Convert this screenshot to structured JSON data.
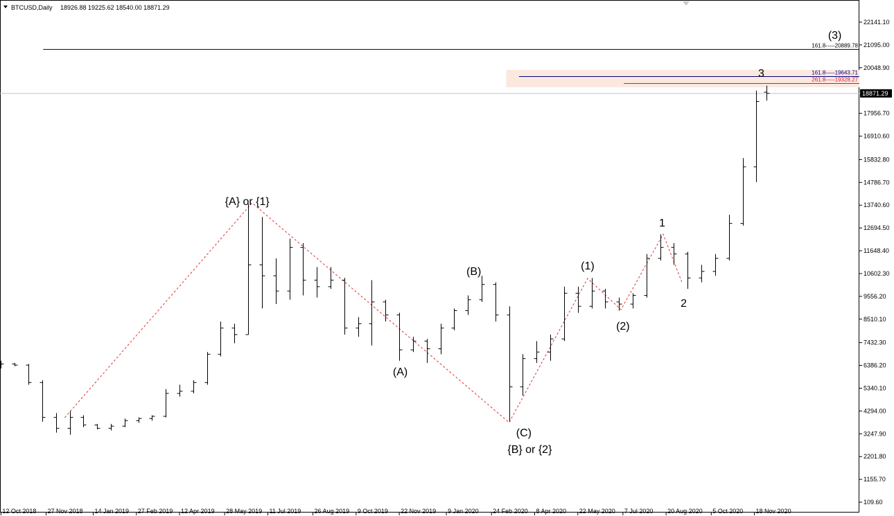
{
  "chart_data": {
    "type": "ohlc",
    "header": {
      "symbol": "BTCUSD,Daily",
      "quote": "18926.88 19225.62 18540.00 18871.29"
    },
    "color": "#000000",
    "x": [
      "2018-10-12",
      "2018-10-26",
      "2018-11-09",
      "2018-11-23",
      "2018-12-07",
      "2018-12-21",
      "2019-01-04",
      "2019-01-18",
      "2019-02-01",
      "2019-02-15",
      "2019-03-01",
      "2019-03-15",
      "2019-03-29",
      "2019-04-12",
      "2019-04-26",
      "2019-05-10",
      "2019-05-24",
      "2019-06-07",
      "2019-06-21",
      "2019-07-05",
      "2019-07-19",
      "2019-08-02",
      "2019-08-16",
      "2019-08-30",
      "2019-09-13",
      "2019-09-27",
      "2019-10-11",
      "2019-10-25",
      "2019-11-08",
      "2019-11-22",
      "2019-12-06",
      "2019-12-20",
      "2020-01-03",
      "2020-01-17",
      "2020-01-31",
      "2020-02-14",
      "2020-02-28",
      "2020-03-13",
      "2020-03-27",
      "2020-04-10",
      "2020-04-24",
      "2020-05-08",
      "2020-05-22",
      "2020-06-05",
      "2020-06-19",
      "2020-07-03",
      "2020-07-17",
      "2020-07-31",
      "2020-08-14",
      "2020-08-28",
      "2020-09-11",
      "2020-09-25",
      "2020-10-09",
      "2020-10-23",
      "2020-11-06",
      "2020-11-20",
      "2020-11-30"
    ],
    "open": [
      6500,
      6450,
      6400,
      5600,
      4000,
      3500,
      4000,
      3650,
      3500,
      3600,
      3850,
      3950,
      4050,
      5100,
      5200,
      5600,
      6900,
      8100,
      7800,
      11000,
      10500,
      9800,
      11800,
      10300,
      10000,
      10300,
      8100,
      8300,
      9300,
      8700,
      7100,
      7500,
      7150,
      8100,
      8900,
      9400,
      10100,
      8700,
      5400,
      6700,
      7000,
      7600,
      9700,
      9100,
      9800,
      9300,
      9200,
      9600,
      11300,
      11800,
      11500,
      10400,
      10700,
      11300,
      12900,
      15500,
      18926.88
    ],
    "high": [
      6600,
      6500,
      6450,
      5700,
      4200,
      4300,
      4100,
      3700,
      3700,
      3950,
      4000,
      4100,
      5300,
      5500,
      5700,
      7000,
      8400,
      8300,
      13800,
      13200,
      11300,
      12200,
      12000,
      10900,
      10900,
      10400,
      8600,
      10300,
      9400,
      8800,
      7700,
      7600,
      8300,
      9000,
      9600,
      10500,
      10200,
      9100,
      6900,
      7500,
      7800,
      10000,
      10000,
      10400,
      9900,
      9500,
      9700,
      11500,
      12400,
      12000,
      11600,
      11000,
      11500,
      13300,
      15900,
      19000,
      19225.62
    ],
    "low": [
      6250,
      6350,
      5500,
      3800,
      3300,
      3200,
      3550,
      3450,
      3400,
      3550,
      3750,
      3850,
      4000,
      4950,
      5100,
      5500,
      6800,
      7400,
      7800,
      9000,
      9200,
      9400,
      9600,
      9500,
      9900,
      7800,
      7700,
      7300,
      8400,
      6600,
      7000,
      6500,
      6900,
      8000,
      8700,
      9300,
      8400,
      3800,
      5000,
      6500,
      6600,
      7500,
      8800,
      9000,
      9000,
      8900,
      9000,
      9500,
      11200,
      11000,
      9900,
      10200,
      10500,
      11200,
      12800,
      14800,
      18540
    ],
    "close": [
      6450,
      6400,
      5600,
      4000,
      3500,
      4000,
      3650,
      3500,
      3600,
      3850,
      3950,
      4050,
      5100,
      5200,
      5600,
      6900,
      8100,
      7800,
      11000,
      10500,
      9800,
      11800,
      10300,
      10000,
      10300,
      8100,
      8300,
      9300,
      8700,
      7100,
      7500,
      7150,
      8100,
      8900,
      9400,
      10100,
      8700,
      5400,
      6700,
      7000,
      7600,
      9700,
      9100,
      9800,
      9300,
      9200,
      9600,
      11300,
      11800,
      11500,
      10400,
      10700,
      11300,
      12900,
      15500,
      18500,
      18871.29
    ],
    "xlim": [
      "2018-10-11",
      "2021-03-05"
    ],
    "xticks": [
      {
        "value": "2018-10-12",
        "label": "12 Oct 2018"
      },
      {
        "value": "2018-11-27",
        "label": "27 Nov 2018"
      },
      {
        "value": "2019-01-14",
        "label": "14 Jan 2019"
      },
      {
        "value": "2019-02-27",
        "label": "27 Feb 2019"
      },
      {
        "value": "2019-04-12",
        "label": "12 Apr 2019"
      },
      {
        "value": "2019-05-28",
        "label": "28 May 2019"
      },
      {
        "value": "2019-07-11",
        "label": "11 Jul 2019"
      },
      {
        "value": "2019-08-26",
        "label": "26 Aug 2019"
      },
      {
        "value": "2019-10-09",
        "label": "9 Oct 2019"
      },
      {
        "value": "2019-11-22",
        "label": "22 Nov 2019"
      },
      {
        "value": "2020-01-09",
        "label": "9 Jan 2020"
      },
      {
        "value": "2020-02-24",
        "label": "24 Feb 2020"
      },
      {
        "value": "2020-04-08",
        "label": "8 Apr 2020"
      },
      {
        "value": "2020-05-22",
        "label": "22 May 2020"
      },
      {
        "value": "2020-07-07",
        "label": "7 Jul 2020"
      },
      {
        "value": "2020-08-20",
        "label": "20 Aug 2020"
      },
      {
        "value": "2020-10-05",
        "label": "5 Oct 2020"
      },
      {
        "value": "2020-11-18",
        "label": "18 Nov 2020"
      }
    ],
    "ylim": [
      -367,
      23157
    ],
    "yticks": [
      {
        "value": 109.6,
        "label": "109.60"
      },
      {
        "value": 1155.7,
        "label": "1155.70"
      },
      {
        "value": 2201.8,
        "label": "2201.80"
      },
      {
        "value": 3247.9,
        "label": "3247.90"
      },
      {
        "value": 4294,
        "label": "4294.00"
      },
      {
        "value": 5340.1,
        "label": "5340.10"
      },
      {
        "value": 6386.2,
        "label": "6386.20"
      },
      {
        "value": 7432.3,
        "label": "7432.30"
      },
      {
        "value": 8510.1,
        "label": "8510.10"
      },
      {
        "value": 9556.2,
        "label": "9556.20"
      },
      {
        "value": 10602.3,
        "label": "10602.30"
      },
      {
        "value": 11648.4,
        "label": "11648.40"
      },
      {
        "value": 12694.5,
        "label": "12694.50"
      },
      {
        "value": 13740.6,
        "label": "13740.60"
      },
      {
        "value": 14786.7,
        "label": "14786.70"
      },
      {
        "value": 15832.8,
        "label": "15832.80"
      },
      {
        "value": 16910.6,
        "label": "16910.60"
      },
      {
        "value": 17956.7,
        "label": "17956.70"
      },
      {
        "value": 20048.9,
        "label": "20048.90"
      },
      {
        "value": 21095,
        "label": "21095.00"
      },
      {
        "value": 22141.1,
        "label": "22141.10"
      }
    ],
    "price_line": {
      "value": 18871.29,
      "color": "#c0c0c0"
    },
    "zone": {
      "from": "2020-03-10",
      "low": 19152,
      "high": 19947,
      "color": "#fbe9df"
    },
    "levels": [
      {
        "value": 20889.78,
        "from": "2018-11-24",
        "label": "161.8-----20889.78",
        "color": "#000000"
      },
      {
        "value": 19643.71,
        "from": "2020-03-23",
        "label": "161.8-----19643.71",
        "color": "#000080"
      },
      {
        "value": 19328.27,
        "from": "2020-07-08",
        "label": "261.8-----19328.27",
        "color": "#dc143c"
      }
    ],
    "wave_path": {
      "color": "#e03030",
      "x": [
        "2018-12-16",
        "2019-06-25",
        "2020-03-13",
        "2020-06-01",
        "2020-07-05",
        "2020-08-17",
        "2020-09-05"
      ],
      "values": [
        3988,
        13843,
        3765,
        10378,
        8947,
        12412,
        10219
      ]
    },
    "annotations": [
      {
        "text": "{A} or {1}",
        "x": "2019-06-20",
        "y": 13938
      },
      {
        "text": "(A)",
        "x": "2019-11-23",
        "y": 6118
      },
      {
        "text": "(B)",
        "x": "2020-02-06",
        "y": 10728
      },
      {
        "text": "(C)",
        "x": "2020-03-28",
        "y": 3320
      },
      {
        "text": "{B} or {2}",
        "x": "2020-04-03",
        "y": 2558
      },
      {
        "text": "(1)",
        "x": "2020-06-01",
        "y": 10982
      },
      {
        "text": "(2)",
        "x": "2020-07-07",
        "y": 8216
      },
      {
        "text": "1",
        "x": "2020-08-16",
        "y": 12953
      },
      {
        "text": "2",
        "x": "2020-09-07",
        "y": 9265
      },
      {
        "text": "3",
        "x": "2020-11-25",
        "y": 19819
      },
      {
        "text": "(3)",
        "x": "2021-02-08",
        "y": 21568
      }
    ]
  }
}
